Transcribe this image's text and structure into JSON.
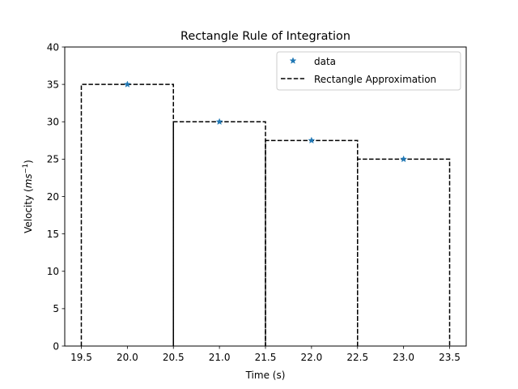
{
  "chart_data": {
    "type": "line",
    "title": "Rectangle Rule of Integration",
    "xlabel": "Time (s)",
    "ylabel_prefix": "Velocity (",
    "ylabel_unit_base": "ms",
    "ylabel_unit_exp": "−1",
    "ylabel_suffix": ")",
    "xlim": [
      19.32,
      23.68
    ],
    "ylim": [
      0,
      40
    ],
    "xticks": [
      19.5,
      20.0,
      20.5,
      21.0,
      21.5,
      22.0,
      22.5,
      23.0,
      23.5
    ],
    "xtick_labels": [
      "19.5",
      "20.0",
      "20.5",
      "21.0",
      "21.5",
      "22.0",
      "22.5",
      "23.0",
      "23.5"
    ],
    "yticks": [
      0,
      5,
      10,
      15,
      20,
      25,
      30,
      35,
      40
    ],
    "ytick_labels": [
      "0",
      "5",
      "10",
      "15",
      "20",
      "25",
      "30",
      "35",
      "40"
    ],
    "grid": false,
    "legend_position": "upper right",
    "series": [
      {
        "name": "data",
        "kind": "scatter",
        "marker": "star",
        "color": "#1f77b4",
        "x": [
          20.0,
          21.0,
          22.0,
          23.0
        ],
        "y": [
          35,
          30,
          27.5,
          25
        ]
      },
      {
        "name": "Rectangle Approximation",
        "kind": "rectangles",
        "color": "#000000",
        "linestyle": "dashed",
        "rects": [
          {
            "x0": 19.5,
            "x1": 20.5,
            "height": 35
          },
          {
            "x0": 20.5,
            "x1": 21.5,
            "height": 30
          },
          {
            "x0": 21.5,
            "x1": 22.5,
            "height": 27.5
          },
          {
            "x0": 22.5,
            "x1": 23.5,
            "height": 25
          }
        ]
      }
    ]
  }
}
